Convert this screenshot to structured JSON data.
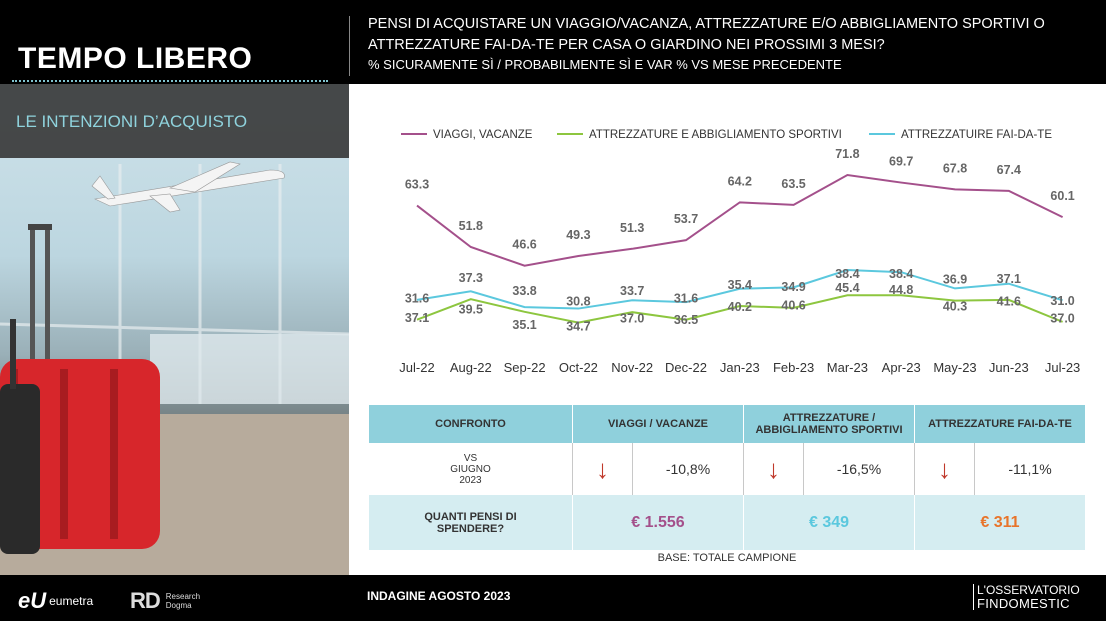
{
  "header": {
    "section_title": "TEMPO LIBERO",
    "question": "PENSI DI ACQUISTARE UN VIAGGIO/VACANZA, ATTREZZATURE E/O ABBIGLIAMENTO SPORTIVI O ATTREZZATURE FAI-DA-TE PER CASA O GIARDINO NEI PROSSIMI 3 MESI?",
    "subtitle": "% SICURAMENTE SÌ / PROBABILMENTE SÌ E VAR % VS MESE PRECEDENTE"
  },
  "left_panel": {
    "banner_label": "LE INTENZIONI D’ACQUISTO"
  },
  "colors": {
    "viaggi": "#a4508b",
    "sport": "#8dc63f",
    "faidate": "#5bc8de",
    "arrow": "#c0392b",
    "orange": "#e8742a"
  },
  "chart_data": {
    "type": "line",
    "categories": [
      "Jul-22",
      "Aug-22",
      "Sep-22",
      "Oct-22",
      "Nov-22",
      "Dec-22",
      "Jan-23",
      "Feb-23",
      "Mar-23",
      "Apr-23",
      "May-23",
      "Jun-23",
      "Jul-23"
    ],
    "series": [
      {
        "name": "VIAGGI, VACANZE",
        "color": "#a4508b",
        "values": [
          63.3,
          51.8,
          46.6,
          49.3,
          51.3,
          53.7,
          64.2,
          63.5,
          71.8,
          69.7,
          67.8,
          67.4,
          60.1
        ]
      },
      {
        "name": "ATTREZZATURE E ABBIGLIAMENTO SPORTIVI",
        "color": "#8dc63f",
        "values": [
          31.6,
          37.3,
          33.8,
          30.8,
          33.7,
          31.6,
          35.4,
          34.9,
          38.4,
          38.4,
          36.9,
          37.1,
          31.0
        ]
      },
      {
        "name": "ATTREZZATUIRE FAI-DA-TE",
        "color": "#5bc8de",
        "values": [
          37.1,
          39.5,
          35.1,
          34.7,
          37.0,
          36.5,
          40.2,
          40.6,
          45.4,
          44.8,
          40.3,
          41.6,
          37.0
        ]
      }
    ],
    "legend": "top",
    "grid": false
  },
  "table": {
    "headers": [
      "CONFRONTO",
      "VIAGGI / VACANZE",
      "ATTREZZATURE / ABBIGLIAMENTO SPORTIVI",
      "ATTREZZATURE FAI-DA-TE"
    ],
    "row_label": "VS GIUGNO 2023",
    "arrow_glyph": "↓",
    "changes": [
      "-10,8%",
      "-16,5%",
      "-11,1%"
    ],
    "spend_label": "QUANTI PENSI DI SPENDERE?",
    "spend_values": [
      "€ 1.556",
      "€ 349",
      "€ 311"
    ]
  },
  "base_note": "BASE: TOTALE CAMPIONE",
  "footer": {
    "eumetra_mark": "eU",
    "eumetra_text": "eumetra",
    "rd_mark": "RD",
    "rd_text_1": "Research",
    "rd_text_2": "Dogma",
    "survey": "INDAGINE AGOSTO  2023",
    "oss_line1": "L'OSSERVATORIO",
    "oss_line2": "FINDOMESTIC"
  }
}
